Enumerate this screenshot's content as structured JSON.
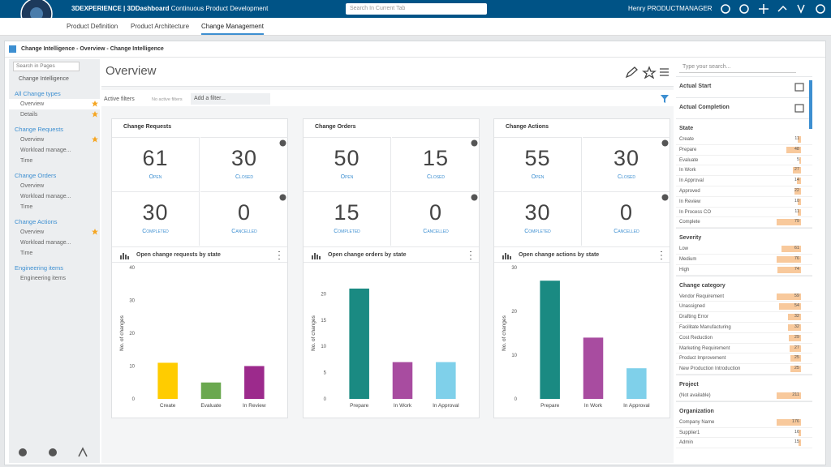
{
  "header": {
    "brand": "3DEXPERIENCE",
    "dashboard": "| 3DDashboard",
    "tab_title": "Continuous Product Development",
    "search_placeholder": "Search In Current Tab",
    "user": "Henry PRODUCTMANAGER"
  },
  "tabs": [
    "Product Definition",
    "Product Architecture",
    "Change Management"
  ],
  "widget": {
    "title": "Change Intelligence - Overview - Change Intelligence"
  },
  "nav": {
    "search_placeholder": "Search in Pages",
    "root": "Change Intelligence",
    "sections": [
      {
        "title": "All Change types",
        "items": [
          {
            "label": "Overview",
            "starred": true,
            "active": true
          },
          {
            "label": "Details",
            "starred": true,
            "active": false
          }
        ]
      },
      {
        "title": "Change Requests",
        "items": [
          {
            "label": "Overview",
            "starred": true,
            "active": false
          },
          {
            "label": "Workload manage...",
            "starred": false,
            "active": false
          },
          {
            "label": "Time",
            "starred": false,
            "active": false
          }
        ]
      },
      {
        "title": "Change Orders",
        "items": [
          {
            "label": "Overview",
            "starred": false,
            "active": false
          },
          {
            "label": "Workload manage...",
            "starred": false,
            "active": false
          },
          {
            "label": "Time",
            "starred": false,
            "active": false
          }
        ]
      },
      {
        "title": "Change Actions",
        "items": [
          {
            "label": "Overview",
            "starred": true,
            "active": false
          },
          {
            "label": "Workload manage...",
            "starred": false,
            "active": false
          },
          {
            "label": "Time",
            "starred": false,
            "active": false
          }
        ]
      },
      {
        "title": "Engineering items",
        "items": [
          {
            "label": "Engineering items",
            "starred": false,
            "active": false
          }
        ]
      }
    ]
  },
  "overview": {
    "title": "Overview",
    "active_filters": "Active filters",
    "no_active_filters": "No active filters",
    "add_filter": "Add a filter..."
  },
  "cards": [
    {
      "title": "Change Requests",
      "stats": [
        {
          "value": 61,
          "label": "Open"
        },
        {
          "value": 30,
          "label": "Closed"
        },
        {
          "value": 30,
          "label": "Completed"
        },
        {
          "value": 0,
          "label": "Cancelled"
        }
      ]
    },
    {
      "title": "Change Orders",
      "stats": [
        {
          "value": 50,
          "label": "Open"
        },
        {
          "value": 15,
          "label": "Closed"
        },
        {
          "value": 15,
          "label": "Completed"
        },
        {
          "value": 0,
          "label": "Cancelled"
        }
      ]
    },
    {
      "title": "Change Actions",
      "stats": [
        {
          "value": 55,
          "label": "Open"
        },
        {
          "value": 30,
          "label": "Closed"
        },
        {
          "value": 30,
          "label": "Completed"
        },
        {
          "value": 0,
          "label": "Cancelled"
        }
      ]
    }
  ],
  "chart_data": [
    {
      "type": "bar",
      "title": "Open change requests by state",
      "y_label": "No. of changes",
      "categories": [
        "Create",
        "Evaluate",
        "In Review"
      ],
      "values": [
        11,
        5,
        10
      ],
      "colors": [
        "#ffcc00",
        "#6aa84f",
        "#9c2a8c"
      ],
      "ylim": [
        0,
        40
      ],
      "yticks": [
        0,
        10,
        20,
        30,
        40
      ]
    },
    {
      "type": "bar",
      "title": "Open change orders by state",
      "y_label": "No. of changes",
      "categories": [
        "Prepare",
        "In Work",
        "In Approval"
      ],
      "values": [
        21,
        7,
        7
      ],
      "colors": [
        "#1a8a82",
        "#a84ca0",
        "#7fd0ea"
      ],
      "ylim": [
        0,
        25
      ],
      "yticks": [
        0,
        5,
        10,
        15,
        20
      ]
    },
    {
      "type": "bar",
      "title": "Open change actions by state",
      "y_label": "No. of changes",
      "categories": [
        "Prepare",
        "In Work",
        "In Approval"
      ],
      "values": [
        27,
        14,
        7
      ],
      "colors": [
        "#1a8a82",
        "#a84ca0",
        "#7fd0ea"
      ],
      "ylim": [
        0,
        30
      ],
      "yticks": [
        0,
        10,
        20,
        30
      ]
    }
  ],
  "panel": {
    "search_placeholder": "Type your search...",
    "date_filters": [
      "Actual Start",
      "Actual Completion"
    ],
    "groups": [
      {
        "title": "State",
        "items": [
          {
            "label": "Create",
            "count": 11
          },
          {
            "label": "Prepare",
            "count": 48
          },
          {
            "label": "Evaluate",
            "count": 5
          },
          {
            "label": "In Work",
            "count": 27
          },
          {
            "label": "In Approval",
            "count": 14
          },
          {
            "label": "Approved",
            "count": 22
          },
          {
            "label": "In Review",
            "count": 10
          },
          {
            "label": "In Process CO",
            "count": 11
          },
          {
            "label": "Complete",
            "count": 79
          }
        ]
      },
      {
        "title": "Severity",
        "items": [
          {
            "label": "Low",
            "count": 61
          },
          {
            "label": "Medium",
            "count": 76
          },
          {
            "label": "High",
            "count": 74
          }
        ]
      },
      {
        "title": "Change category",
        "items": [
          {
            "label": "Vendor Requirement",
            "count": 59
          },
          {
            "label": "Unassigned",
            "count": 54
          },
          {
            "label": "Drafting Error",
            "count": 32
          },
          {
            "label": "Facilitate Manufacturing",
            "count": 32
          },
          {
            "label": "Cost Reduction",
            "count": 29
          },
          {
            "label": "Marketing Requirement",
            "count": 27
          },
          {
            "label": "Product Improvement",
            "count": 25
          },
          {
            "label": "New Production Introduction",
            "count": 25
          }
        ]
      },
      {
        "title": "Project",
        "items": [
          {
            "label": "(Not available)",
            "count": 211
          }
        ]
      },
      {
        "title": "Organization",
        "items": [
          {
            "label": "Company Name",
            "count": 176
          },
          {
            "label": "Supplier1",
            "count": 16
          },
          {
            "label": "Admin",
            "count": 15
          }
        ]
      }
    ]
  }
}
